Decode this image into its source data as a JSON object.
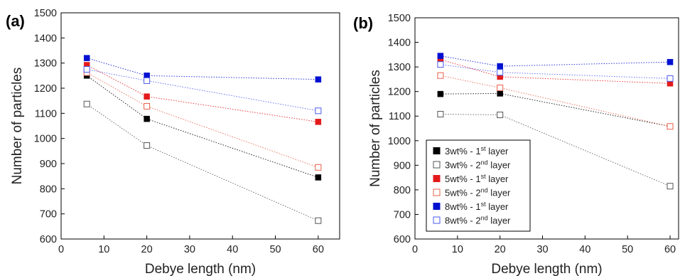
{
  "figure": {
    "panel_labels": [
      "(a)",
      "(b)"
    ]
  },
  "legend": {
    "entries": [
      {
        "text": "3wt% - 1",
        "sup": "st",
        "suffix": " layer",
        "color": "#000000",
        "filled": true
      },
      {
        "text": "3wt% - 2",
        "sup": "nd",
        "suffix": " layer",
        "color": "#555555",
        "filled": false
      },
      {
        "text": "5wt% - 1",
        "sup": "st",
        "suffix": " layer",
        "color": "#e31a1c",
        "filled": true
      },
      {
        "text": "5wt% - 2",
        "sup": "nd",
        "suffix": " layer",
        "color": "#e8604a",
        "filled": false
      },
      {
        "text": "8wt% - 1",
        "sup": "st",
        "suffix": " layer",
        "color": "#0010d0",
        "filled": true
      },
      {
        "text": "8wt% - 2",
        "sup": "nd",
        "suffix": " layer",
        "color": "#4a5aee",
        "filled": false
      }
    ]
  },
  "chart_data": [
    {
      "type": "scatter",
      "panel": "(a)",
      "xlabel": "Debye length (nm)",
      "ylabel": "Number of particles",
      "xlim": [
        0,
        65
      ],
      "ylim": [
        600,
        1500
      ],
      "xticks": [
        0,
        10,
        20,
        30,
        40,
        50,
        60
      ],
      "yticks": [
        600,
        700,
        800,
        900,
        1000,
        1100,
        1200,
        1300,
        1400,
        1500
      ],
      "x": [
        6,
        20,
        60
      ],
      "series": [
        {
          "name": "3wt% - 1st layer",
          "values": [
            1250,
            1078,
            845
          ],
          "color": "#000000",
          "filled": true
        },
        {
          "name": "3wt% - 2nd layer",
          "values": [
            1137,
            972,
            673
          ],
          "color": "#555555",
          "filled": false
        },
        {
          "name": "5wt% - 1st layer",
          "values": [
            1292,
            1167,
            1066
          ],
          "color": "#e31a1c",
          "filled": true
        },
        {
          "name": "5wt% - 2nd layer",
          "values": [
            1262,
            1128,
            885
          ],
          "color": "#e8604a",
          "filled": false
        },
        {
          "name": "8wt% - 1st layer",
          "values": [
            1320,
            1250,
            1235
          ],
          "color": "#0010d0",
          "filled": true
        },
        {
          "name": "8wt% - 2nd layer",
          "values": [
            1275,
            1230,
            1110
          ],
          "color": "#4a5aee",
          "filled": false
        }
      ]
    },
    {
      "type": "scatter",
      "panel": "(b)",
      "xlabel": "Debye length (nm)",
      "ylabel": "Number of particles",
      "xlim": [
        0,
        62
      ],
      "ylim": [
        600,
        1500
      ],
      "xticks": [
        0,
        10,
        20,
        30,
        40,
        50,
        60
      ],
      "yticks": [
        600,
        700,
        800,
        900,
        1000,
        1100,
        1200,
        1300,
        1400,
        1500
      ],
      "x": [
        6,
        20,
        60
      ],
      "series": [
        {
          "name": "3wt% - 1st layer",
          "values": [
            1190,
            1192,
            1058
          ],
          "color": "#000000",
          "filled": true
        },
        {
          "name": "3wt% - 2nd layer",
          "values": [
            1108,
            1105,
            815
          ],
          "color": "#555555",
          "filled": false
        },
        {
          "name": "5wt% - 1st layer",
          "values": [
            1330,
            1260,
            1233
          ],
          "color": "#e31a1c",
          "filled": true
        },
        {
          "name": "5wt% - 2nd layer",
          "values": [
            1265,
            1215,
            1058
          ],
          "color": "#e8604a",
          "filled": false
        },
        {
          "name": "8wt% - 1st layer",
          "values": [
            1345,
            1303,
            1320
          ],
          "color": "#0010d0",
          "filled": true
        },
        {
          "name": "8wt% - 2nd layer",
          "values": [
            1310,
            1278,
            1253
          ],
          "color": "#4a5aee",
          "filled": false
        }
      ]
    }
  ]
}
